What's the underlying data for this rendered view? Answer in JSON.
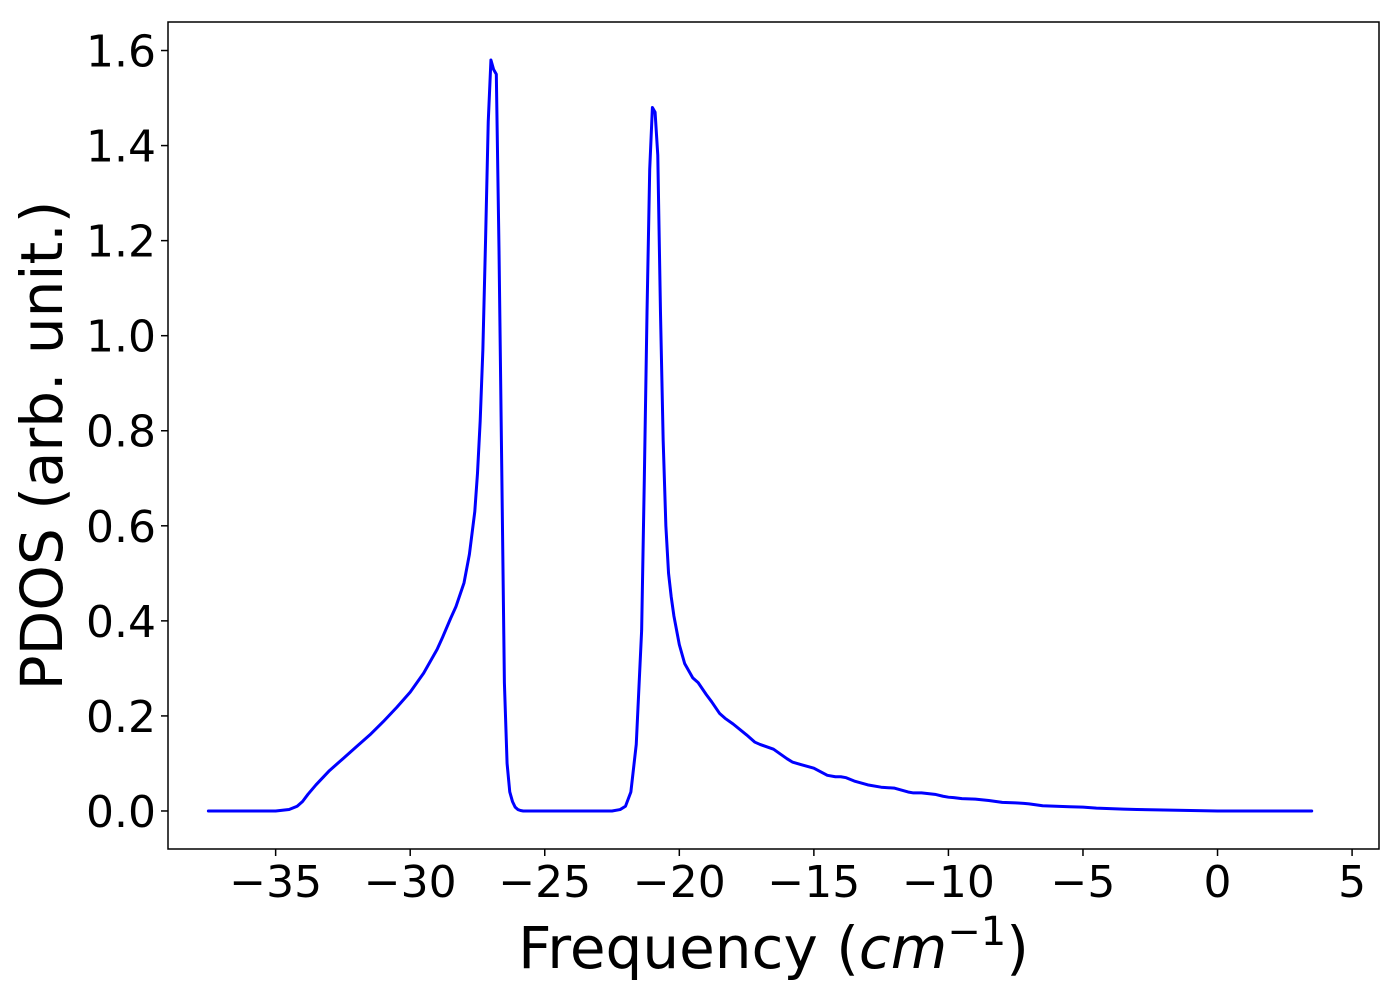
{
  "chart_data": {
    "type": "line",
    "title": "",
    "xlabel": {
      "prefix": "Frequency (",
      "math": "cm",
      "superscript": "−1",
      "suffix": ")"
    },
    "ylabel": "PDOS (arb. unit.)",
    "xlim": [
      -39,
      6
    ],
    "ylim": [
      -0.08,
      1.66
    ],
    "xticks": [
      -35,
      -30,
      -25,
      -20,
      -15,
      -10,
      -5,
      0,
      5
    ],
    "xtick_labels": [
      "−35",
      "−30",
      "−25",
      "−20",
      "−15",
      "−10",
      "−5",
      "0",
      "5"
    ],
    "yticks": [
      0.0,
      0.2,
      0.4,
      0.6,
      0.8,
      1.0,
      1.2,
      1.4,
      1.6
    ],
    "ytick_labels": [
      "0.0",
      "0.2",
      "0.4",
      "0.6",
      "0.8",
      "1.0",
      "1.2",
      "1.4",
      "1.6"
    ],
    "grid": false,
    "series": [
      {
        "color": "#0000ff",
        "x": [
          -37.5,
          -35.0,
          -34.5,
          -34.2,
          -34.0,
          -33.8,
          -33.5,
          -33.0,
          -32.5,
          -32.0,
          -31.5,
          -31.0,
          -30.5,
          -30.0,
          -29.5,
          -29.0,
          -28.8,
          -28.5,
          -28.3,
          -28.0,
          -27.8,
          -27.6,
          -27.5,
          -27.4,
          -27.3,
          -27.2,
          -27.1,
          -27.0,
          -26.9,
          -26.8,
          -26.7,
          -26.6,
          -26.5,
          -26.4,
          -26.3,
          -26.2,
          -26.1,
          -26.0,
          -25.9,
          -25.8,
          -25.7,
          -25.5,
          -25.0,
          -24.0,
          -23.0,
          -22.5,
          -22.2,
          -22.0,
          -21.8,
          -21.6,
          -21.4,
          -21.3,
          -21.2,
          -21.1,
          -21.0,
          -20.9,
          -20.8,
          -20.7,
          -20.6,
          -20.5,
          -20.4,
          -20.3,
          -20.2,
          -20.0,
          -19.8,
          -19.6,
          -19.5,
          -19.3,
          -19.0,
          -18.8,
          -18.5,
          -18.3,
          -18.0,
          -17.5,
          -17.2,
          -17.0,
          -16.5,
          -16.0,
          -15.8,
          -15.5,
          -15.0,
          -14.5,
          -14.2,
          -14.0,
          -13.8,
          -13.5,
          -13.0,
          -12.5,
          -12.0,
          -11.5,
          -11.3,
          -11.0,
          -10.5,
          -10.2,
          -10.0,
          -9.8,
          -9.5,
          -9.0,
          -8.5,
          -8.0,
          -7.5,
          -7.2,
          -7.0,
          -6.5,
          -6.0,
          -5.5,
          -5.0,
          -4.5,
          -4.0,
          -3.5,
          -3.0,
          -2.0,
          -1.0,
          0.0,
          1.0,
          2.0,
          3.5
        ],
        "y": [
          0.0,
          0.0,
          0.003,
          0.01,
          0.02,
          0.035,
          0.055,
          0.085,
          0.11,
          0.135,
          0.16,
          0.188,
          0.218,
          0.25,
          0.29,
          0.34,
          0.365,
          0.405,
          0.43,
          0.48,
          0.54,
          0.63,
          0.71,
          0.82,
          0.97,
          1.2,
          1.45,
          1.58,
          1.56,
          1.55,
          1.18,
          0.73,
          0.27,
          0.1,
          0.04,
          0.02,
          0.008,
          0.003,
          0.001,
          0.0,
          0.0,
          0.0,
          0.0,
          0.0,
          0.0,
          0.0,
          0.003,
          0.01,
          0.04,
          0.14,
          0.38,
          0.7,
          1.05,
          1.35,
          1.48,
          1.47,
          1.38,
          1.05,
          0.78,
          0.6,
          0.5,
          0.45,
          0.41,
          0.35,
          0.31,
          0.29,
          0.28,
          0.27,
          0.245,
          0.23,
          0.205,
          0.195,
          0.183,
          0.16,
          0.145,
          0.14,
          0.13,
          0.11,
          0.103,
          0.098,
          0.09,
          0.075,
          0.072,
          0.072,
          0.07,
          0.063,
          0.055,
          0.05,
          0.048,
          0.04,
          0.038,
          0.038,
          0.035,
          0.031,
          0.029,
          0.028,
          0.026,
          0.025,
          0.022,
          0.018,
          0.017,
          0.016,
          0.015,
          0.011,
          0.01,
          0.009,
          0.008,
          0.006,
          0.005,
          0.004,
          0.003,
          0.002,
          0.001,
          0.0,
          0.0,
          0.0,
          0.0
        ]
      }
    ]
  }
}
